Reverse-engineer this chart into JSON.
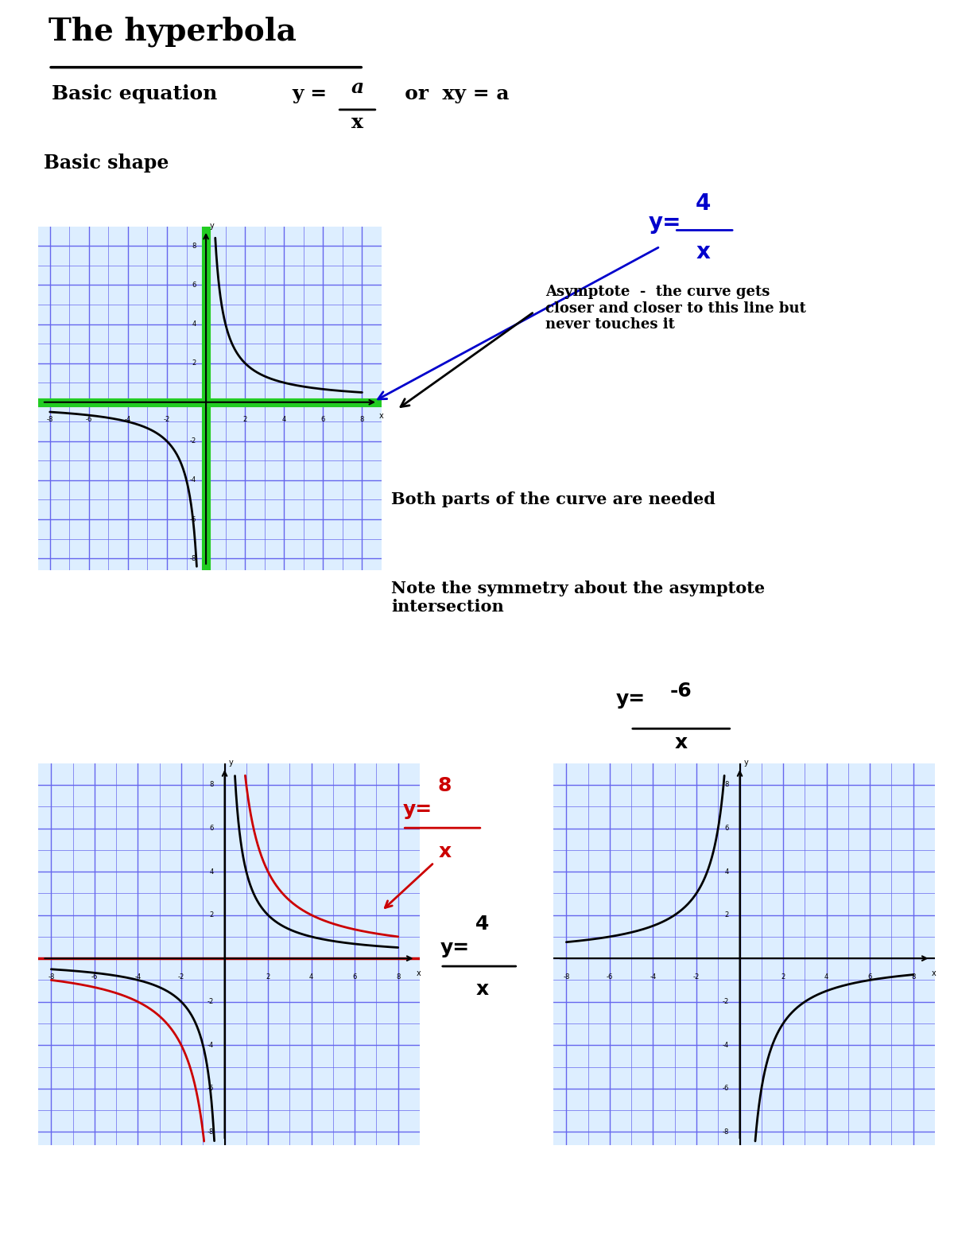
{
  "title": "The hyperbola",
  "bg_color": "#ffffff",
  "grid_color": "#6666ee",
  "grid_bg": "#ddeeff",
  "basic_eq_text": "Basic equation",
  "basic_shape_text": "Basic shape",
  "asymptote_text": "Asymptote  -  the curve gets\ncloser and closer to this line but\nnever touches it",
  "both_parts_text": "Both parts of the curve are needed",
  "symmetry_text": "Note the symmetry about the asymptote\nintersection",
  "hyperbola_a1": 4,
  "hyperbola_a2": 8,
  "hyperbola_a3": -6,
  "curve_color_black": "#000000",
  "curve_color_red": "#cc0000",
  "green_color": "#22cc22",
  "blue_label_color": "#0000cc",
  "red_label_color": "#cc0000",
  "axis_min": -8,
  "axis_max": 8
}
